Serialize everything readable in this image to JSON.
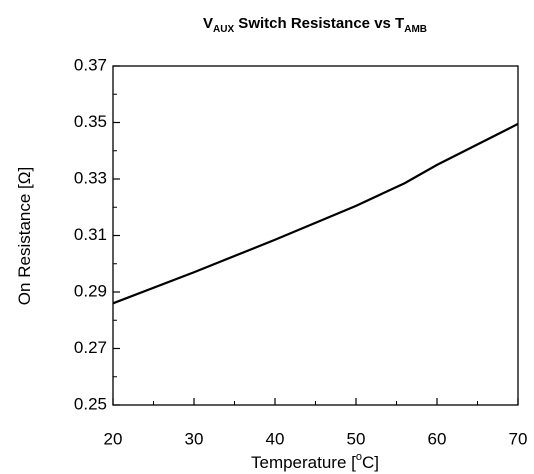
{
  "chart_data": {
    "type": "line",
    "title": [
      "V",
      "AUX",
      " Switch Resistance vs T",
      "AMB"
    ],
    "xlabel": [
      "Temperature [",
      "o",
      "C]"
    ],
    "ylabel": "On Resistance [Ω]",
    "x": [
      20,
      30,
      40,
      50,
      56,
      60,
      70
    ],
    "values": [
      0.286,
      0.297,
      0.3085,
      0.3205,
      0.3285,
      0.335,
      0.3495
    ],
    "color": "#000000",
    "xlim": [
      20,
      70
    ],
    "xticks": [
      20,
      30,
      40,
      50,
      60,
      70
    ],
    "ylim": [
      0.25,
      0.37
    ],
    "yticks": [
      0.25,
      0.27,
      0.29,
      0.31,
      0.33,
      0.35,
      0.37
    ],
    "grid": false
  }
}
